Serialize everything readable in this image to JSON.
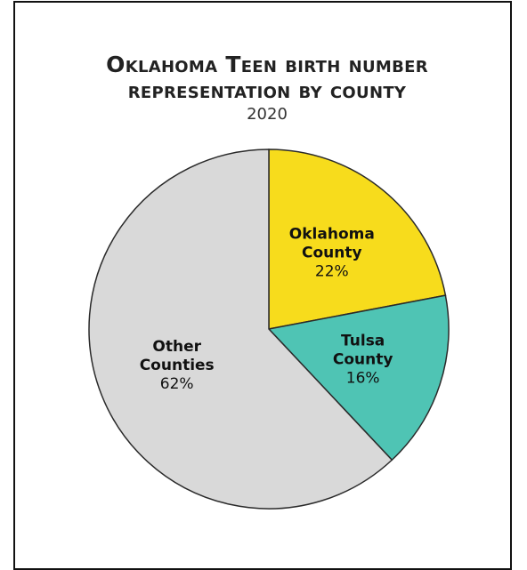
{
  "chart_data": {
    "type": "pie",
    "title": "Oklahoma Teen birth number representation by county",
    "subtitle": "2020",
    "categories": [
      "Oklahoma County",
      "Tulsa County",
      "Other Counties"
    ],
    "values": [
      22,
      16,
      62
    ],
    "value_labels": [
      "22%",
      "16%",
      "62%"
    ],
    "colors": [
      "#f7dc1c",
      "#4fc4b4",
      "#d9d9d9"
    ]
  }
}
